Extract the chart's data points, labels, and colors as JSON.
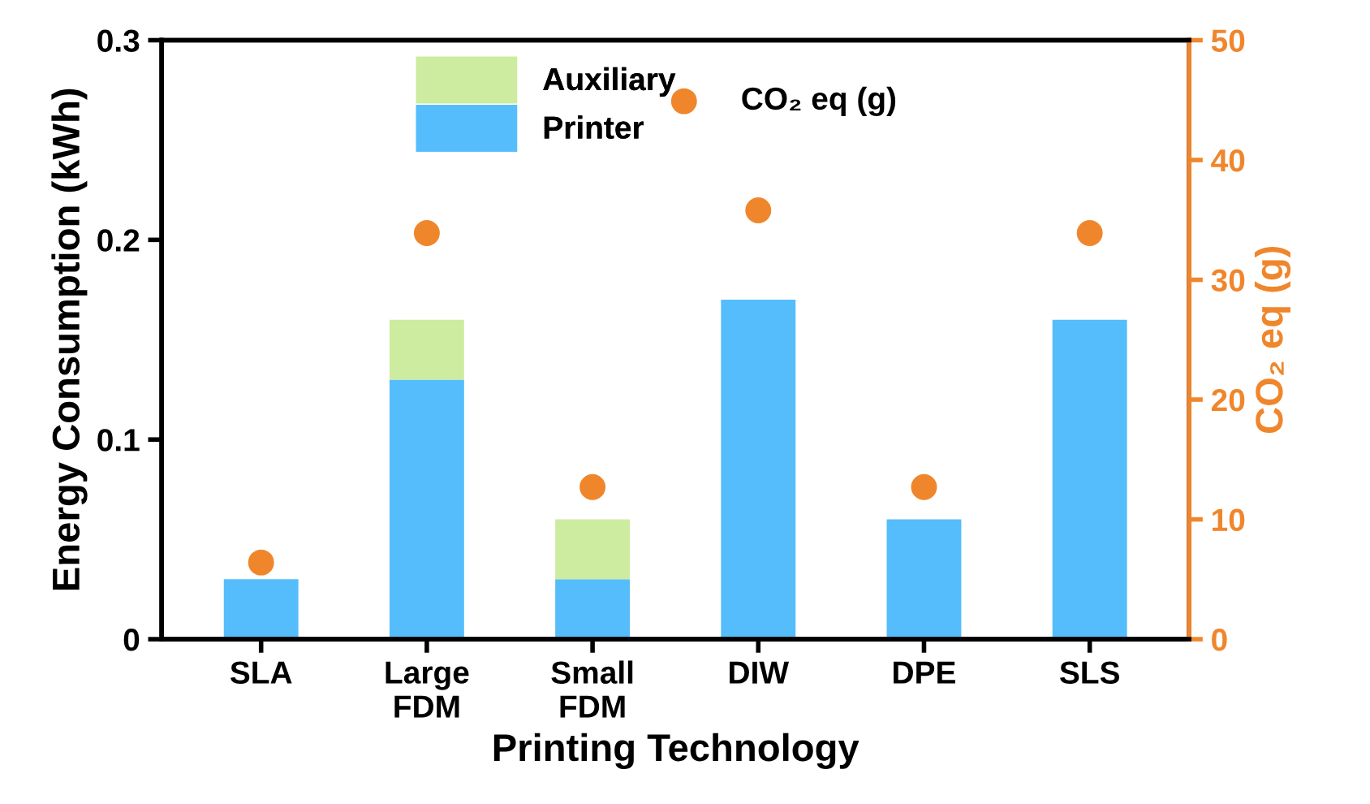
{
  "chart_data": {
    "type": "bar",
    "stacked": true,
    "xlabel": "Printing Technology",
    "ylabel": "Energy Consumption (kWh)",
    "y2label": "CO₂ eq (g)",
    "categories": [
      "SLA",
      "Large\nFDM",
      "Small\nFDM",
      "DIW",
      "DPE",
      "SLS"
    ],
    "series": [
      {
        "name": "Printer",
        "color": "#55bdfc",
        "values": [
          0.03,
          0.13,
          0.03,
          0.17,
          0.06,
          0.16
        ]
      },
      {
        "name": "Auxiliary",
        "color": "#cdeca0",
        "values": [
          0,
          0.03,
          0.03,
          0,
          0,
          0
        ]
      },
      {
        "name": "CO₂ eq (g)",
        "type": "scatter",
        "axis": "y2",
        "color": "#f0862c",
        "marker": "circle",
        "values": [
          6.4,
          33.9,
          12.7,
          35.8,
          12.7,
          33.9
        ]
      }
    ],
    "ylim": [
      0,
      0.3
    ],
    "yticks": [
      0,
      0.1,
      0.2,
      0.3
    ],
    "y2lim": [
      0,
      50
    ],
    "y2ticks": [
      0,
      10,
      20,
      30,
      40,
      50
    ],
    "grid": false,
    "legend": "top"
  }
}
